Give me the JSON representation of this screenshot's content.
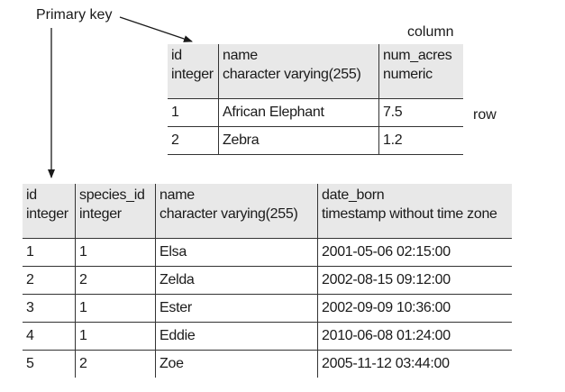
{
  "labels": {
    "primary_key": "Primary key",
    "column": "column",
    "row": "row"
  },
  "species_table": {
    "columns": [
      {
        "name": "id",
        "type": "integer"
      },
      {
        "name": "name",
        "type": "character varying(255)"
      },
      {
        "name": "num_acres",
        "type": "numeric"
      }
    ],
    "rows": [
      [
        "1",
        "African Elephant",
        "7.5"
      ],
      [
        "2",
        "Zebra",
        "1.2"
      ]
    ]
  },
  "animal_table": {
    "columns": [
      {
        "name": "id",
        "type": "integer"
      },
      {
        "name": "species_id",
        "type": "integer"
      },
      {
        "name": "name",
        "type": "character varying(255)"
      },
      {
        "name": "date_born",
        "type": "timestamp without time zone"
      }
    ],
    "rows": [
      [
        "1",
        "1",
        "Elsa",
        "2001-05-06 02:15:00"
      ],
      [
        "2",
        "2",
        "Zelda",
        "2002-08-15 09:12:00"
      ],
      [
        "3",
        "1",
        "Ester",
        "2002-09-09 10:36:00"
      ],
      [
        "4",
        "1",
        "Eddie",
        "2010-06-08 01:24:00"
      ],
      [
        "5",
        "2",
        "Zoe",
        "2005-11-12 03:44:00"
      ]
    ]
  },
  "colors": {
    "header_bg": "#e8e8e8",
    "lines": "#333333",
    "text": "#1a1a1a"
  }
}
